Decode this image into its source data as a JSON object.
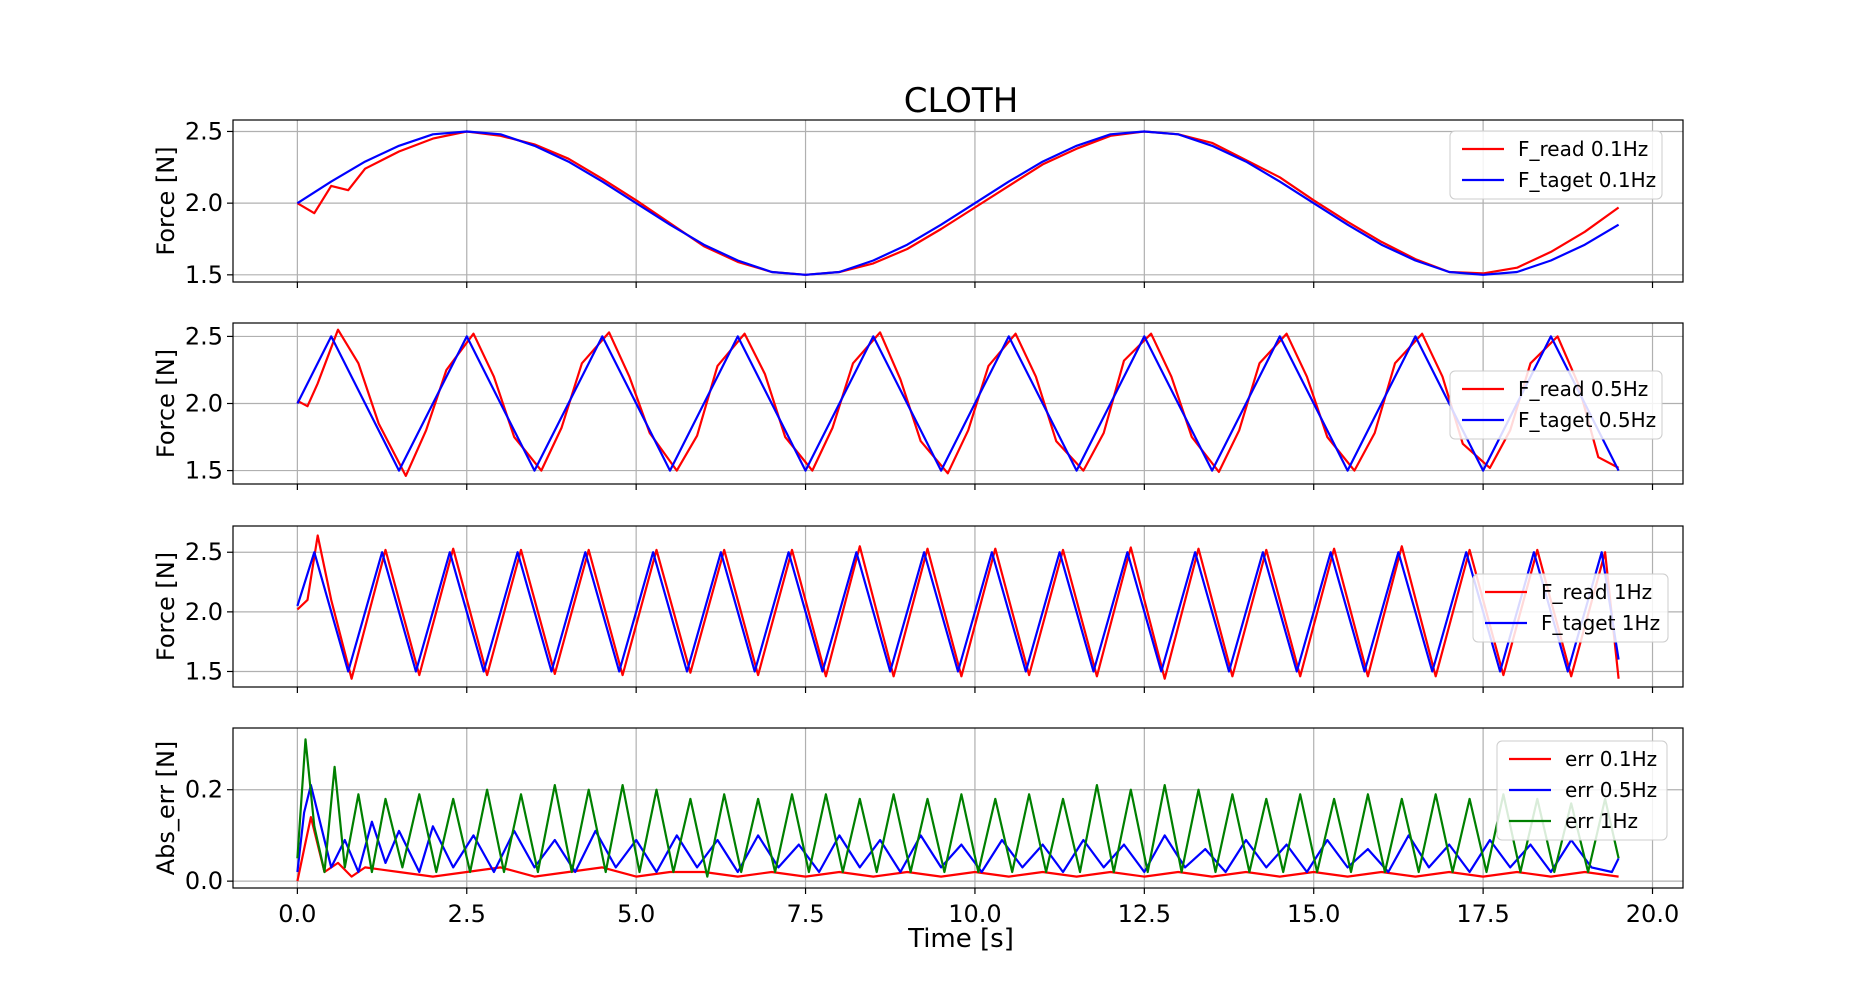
{
  "figure_title": "CLOTH",
  "xlabel": "Time [s]",
  "colors": {
    "read": "#ff0000",
    "target": "#0000ff",
    "err1": "#008000",
    "grid": "#b0b0b0"
  },
  "chart_data": [
    {
      "type": "line",
      "title": "CLOTH",
      "ylabel": "Force [N]",
      "xlim": [
        -0.95,
        20.45
      ],
      "ylim": [
        1.45,
        2.58
      ],
      "xticks": [
        "0.0",
        "2.5",
        "5.0",
        "7.5",
        "10.0",
        "12.5",
        "15.0",
        "17.5",
        "20.0"
      ],
      "yticks": [
        "1.5",
        "2.0",
        "2.5"
      ],
      "grid": true,
      "legend_position": "upper-right",
      "series": [
        {
          "name": "F_read 0.1Hz",
          "color": "#ff0000",
          "x": [
            0,
            0.25,
            0.5,
            0.75,
            1,
            1.5,
            2,
            2.5,
            3,
            3.5,
            4,
            4.5,
            5,
            5.5,
            6,
            6.5,
            7,
            7.5,
            8,
            8.5,
            9,
            9.5,
            10,
            10.5,
            11,
            11.5,
            12,
            12.5,
            13,
            13.5,
            14,
            14.5,
            15,
            15.5,
            16,
            16.5,
            17,
            17.5,
            18,
            18.5,
            19,
            19.5
          ],
          "y": [
            2.0,
            1.93,
            2.12,
            2.09,
            2.24,
            2.36,
            2.45,
            2.5,
            2.47,
            2.41,
            2.31,
            2.17,
            2.02,
            1.86,
            1.7,
            1.59,
            1.52,
            1.5,
            1.52,
            1.58,
            1.68,
            1.82,
            1.97,
            2.12,
            2.27,
            2.38,
            2.47,
            2.5,
            2.48,
            2.42,
            2.3,
            2.18,
            2.02,
            1.87,
            1.73,
            1.61,
            1.52,
            1.51,
            1.55,
            1.66,
            1.8,
            1.97
          ]
        },
        {
          "name": "F_taget 0.1Hz",
          "color": "#0000ff",
          "x": [
            0,
            0.5,
            1,
            1.5,
            2,
            2.5,
            3,
            3.5,
            4,
            4.5,
            5,
            5.5,
            6,
            6.5,
            7,
            7.5,
            8,
            8.5,
            9,
            9.5,
            10,
            10.5,
            11,
            11.5,
            12,
            12.5,
            13,
            13.5,
            14,
            14.5,
            15,
            15.5,
            16,
            16.5,
            17,
            17.5,
            18,
            18.5,
            19,
            19.5
          ],
          "y": [
            2.0,
            2.15,
            2.29,
            2.4,
            2.48,
            2.5,
            2.48,
            2.4,
            2.29,
            2.15,
            2.0,
            1.85,
            1.71,
            1.6,
            1.52,
            1.5,
            1.52,
            1.6,
            1.71,
            1.85,
            2.0,
            2.15,
            2.29,
            2.4,
            2.48,
            2.5,
            2.48,
            2.4,
            2.29,
            2.15,
            2.0,
            1.85,
            1.71,
            1.6,
            1.52,
            1.5,
            1.52,
            1.6,
            1.71,
            1.85
          ]
        }
      ]
    },
    {
      "type": "line",
      "ylabel": "Force [N]",
      "xlim": [
        -0.95,
        20.45
      ],
      "ylim": [
        1.4,
        2.6
      ],
      "xticks": [
        "0.0",
        "2.5",
        "5.0",
        "7.5",
        "10.0",
        "12.5",
        "15.0",
        "17.5",
        "20.0"
      ],
      "yticks": [
        "1.5",
        "2.0",
        "2.5"
      ],
      "grid": true,
      "legend_position": "center-right",
      "series": [
        {
          "name": "F_read 0.5Hz",
          "color": "#ff0000",
          "x": [
            0,
            0.15,
            0.3,
            0.6,
            0.9,
            1.2,
            1.6,
            1.9,
            2.2,
            2.6,
            2.9,
            3.2,
            3.6,
            3.9,
            4.2,
            4.6,
            4.9,
            5.2,
            5.6,
            5.9,
            6.2,
            6.6,
            6.9,
            7.2,
            7.6,
            7.9,
            8.2,
            8.6,
            8.9,
            9.2,
            9.6,
            9.9,
            10.2,
            10.6,
            10.9,
            11.2,
            11.6,
            11.9,
            12.2,
            12.6,
            12.9,
            13.2,
            13.6,
            13.9,
            14.2,
            14.6,
            14.9,
            15.2,
            15.6,
            15.9,
            16.2,
            16.6,
            16.9,
            17.2,
            17.6,
            17.9,
            18.2,
            18.6,
            18.9,
            19.2,
            19.5
          ],
          "y": [
            2.02,
            1.98,
            2.15,
            2.55,
            2.3,
            1.85,
            1.46,
            1.8,
            2.25,
            2.52,
            2.2,
            1.75,
            1.5,
            1.82,
            2.3,
            2.53,
            2.2,
            1.78,
            1.5,
            1.76,
            2.28,
            2.52,
            2.22,
            1.75,
            1.5,
            1.82,
            2.3,
            2.53,
            2.18,
            1.72,
            1.48,
            1.8,
            2.28,
            2.52,
            2.2,
            1.72,
            1.5,
            1.78,
            2.32,
            2.52,
            2.2,
            1.75,
            1.49,
            1.8,
            2.3,
            2.52,
            2.2,
            1.75,
            1.5,
            1.78,
            2.3,
            2.52,
            2.2,
            1.7,
            1.52,
            1.8,
            2.3,
            2.5,
            2.15,
            1.6,
            1.52
          ]
        },
        {
          "name": "F_taget 0.5Hz",
          "color": "#0000ff",
          "x": [
            0,
            0.5,
            1,
            1.5,
            2,
            2.5,
            3,
            3.5,
            4,
            4.5,
            5,
            5.5,
            6,
            6.5,
            7,
            7.5,
            8,
            8.5,
            9,
            9.5,
            10,
            10.5,
            11,
            11.5,
            12,
            12.5,
            13,
            13.5,
            14,
            14.5,
            15,
            15.5,
            16,
            16.5,
            17,
            17.5,
            18,
            18.5,
            19,
            19.5
          ],
          "y": [
            2.0,
            2.5,
            2.0,
            1.5,
            2.0,
            2.5,
            2.0,
            1.5,
            2.0,
            2.5,
            2.0,
            1.5,
            2.0,
            2.5,
            2.0,
            1.5,
            2.0,
            2.5,
            2.0,
            1.5,
            2.0,
            2.5,
            2.0,
            1.5,
            2.0,
            2.5,
            2.0,
            1.5,
            2.0,
            2.5,
            2.0,
            1.5,
            2.0,
            2.5,
            2.0,
            1.5,
            2.0,
            2.5,
            2.0,
            1.5
          ]
        }
      ]
    },
    {
      "type": "line",
      "ylabel": "Force [N]",
      "xlim": [
        -0.95,
        20.45
      ],
      "ylim": [
        1.37,
        2.72
      ],
      "xticks": [
        "0.0",
        "2.5",
        "5.0",
        "7.5",
        "10.0",
        "12.5",
        "15.0",
        "17.5",
        "20.0"
      ],
      "yticks": [
        "1.5",
        "2.0",
        "2.5"
      ],
      "grid": true,
      "legend_position": "center-right",
      "series": [
        {
          "name": "F_read 1Hz",
          "color": "#ff0000",
          "x": [
            0,
            0.15,
            0.3,
            0.5,
            0.8,
            1.3,
            1.8,
            2.3,
            2.8,
            3.3,
            3.8,
            4.3,
            4.8,
            5.3,
            5.8,
            6.3,
            6.8,
            7.3,
            7.8,
            8.3,
            8.8,
            9.3,
            9.8,
            10.3,
            10.8,
            11.3,
            11.8,
            12.3,
            12.8,
            13.3,
            13.8,
            14.3,
            14.8,
            15.3,
            15.8,
            16.3,
            16.8,
            17.3,
            17.8,
            18.3,
            18.8,
            19.3,
            19.5
          ],
          "y": [
            2.02,
            2.1,
            2.64,
            2.1,
            1.44,
            2.52,
            1.47,
            2.53,
            1.47,
            2.52,
            1.48,
            2.52,
            1.47,
            2.52,
            1.49,
            2.52,
            1.47,
            2.52,
            1.46,
            2.55,
            1.46,
            2.53,
            1.46,
            2.53,
            1.47,
            2.52,
            1.46,
            2.54,
            1.44,
            2.53,
            1.46,
            2.52,
            1.46,
            2.53,
            1.46,
            2.55,
            1.46,
            2.52,
            1.47,
            2.52,
            1.46,
            2.5,
            1.44
          ]
        },
        {
          "name": "F_taget 1Hz",
          "color": "#0000ff",
          "x": [
            0,
            0.25,
            0.75,
            1.25,
            1.75,
            2.25,
            2.75,
            3.25,
            3.75,
            4.25,
            4.75,
            5.25,
            5.75,
            6.25,
            6.75,
            7.25,
            7.75,
            8.25,
            8.75,
            9.25,
            9.75,
            10.25,
            10.75,
            11.25,
            11.75,
            12.25,
            12.75,
            13.25,
            13.75,
            14.25,
            14.75,
            15.25,
            15.75,
            16.25,
            16.75,
            17.25,
            17.75,
            18.25,
            18.75,
            19.25,
            19.5
          ],
          "y": [
            2.05,
            2.5,
            1.5,
            2.5,
            1.5,
            2.5,
            1.5,
            2.5,
            1.5,
            2.5,
            1.5,
            2.5,
            1.5,
            2.5,
            1.5,
            2.5,
            1.5,
            2.5,
            1.5,
            2.5,
            1.5,
            2.5,
            1.5,
            2.5,
            1.5,
            2.5,
            1.5,
            2.5,
            1.5,
            2.5,
            1.5,
            2.5,
            1.5,
            2.5,
            1.5,
            2.5,
            1.5,
            2.5,
            1.5,
            2.5,
            1.6
          ]
        }
      ]
    },
    {
      "type": "line",
      "ylabel": "Abs_err [N]",
      "xlabel": "Time [s]",
      "xlim": [
        -0.95,
        20.45
      ],
      "ylim": [
        -0.015,
        0.335
      ],
      "xticks": [
        "0.0",
        "2.5",
        "5.0",
        "7.5",
        "10.0",
        "12.5",
        "15.0",
        "17.5",
        "20.0"
      ],
      "yticks": [
        "0.0",
        "0.2"
      ],
      "grid": true,
      "legend_position": "upper-right",
      "series": [
        {
          "name": "err 0.1Hz",
          "color": "#ff0000",
          "x": [
            0,
            0.1,
            0.2,
            0.3,
            0.4,
            0.6,
            0.8,
            1.0,
            1.5,
            2.0,
            2.5,
            3.0,
            3.5,
            4.0,
            4.5,
            5.0,
            5.5,
            6.0,
            6.5,
            7.0,
            7.5,
            8.0,
            8.5,
            9.0,
            9.5,
            10.0,
            10.5,
            11.0,
            11.5,
            12.0,
            12.5,
            13.0,
            13.5,
            14.0,
            14.5,
            15.0,
            15.5,
            16.0,
            16.5,
            17.0,
            17.5,
            18.0,
            18.5,
            19.0,
            19.5
          ],
          "y": [
            0.0,
            0.07,
            0.14,
            0.08,
            0.02,
            0.04,
            0.01,
            0.03,
            0.02,
            0.01,
            0.02,
            0.03,
            0.01,
            0.02,
            0.03,
            0.01,
            0.02,
            0.02,
            0.01,
            0.02,
            0.01,
            0.02,
            0.01,
            0.02,
            0.01,
            0.02,
            0.01,
            0.02,
            0.01,
            0.02,
            0.01,
            0.02,
            0.01,
            0.02,
            0.01,
            0.02,
            0.01,
            0.02,
            0.01,
            0.02,
            0.01,
            0.02,
            0.01,
            0.02,
            0.01
          ]
        },
        {
          "name": "err 0.5Hz",
          "color": "#0000ff",
          "x": [
            0,
            0.1,
            0.2,
            0.35,
            0.5,
            0.7,
            0.9,
            1.1,
            1.3,
            1.5,
            1.8,
            2.0,
            2.3,
            2.6,
            2.9,
            3.2,
            3.5,
            3.8,
            4.1,
            4.4,
            4.7,
            5.0,
            5.3,
            5.6,
            5.9,
            6.2,
            6.5,
            6.8,
            7.1,
            7.4,
            7.7,
            8.0,
            8.3,
            8.6,
            8.9,
            9.2,
            9.5,
            9.8,
            10.1,
            10.4,
            10.7,
            11.0,
            11.3,
            11.6,
            11.9,
            12.2,
            12.5,
            12.8,
            13.1,
            13.4,
            13.7,
            14.0,
            14.3,
            14.6,
            14.9,
            15.2,
            15.5,
            15.8,
            16.1,
            16.4,
            16.7,
            17.0,
            17.3,
            17.6,
            17.9,
            18.2,
            18.5,
            18.8,
            19.1,
            19.4,
            19.5
          ],
          "y": [
            0.02,
            0.15,
            0.21,
            0.12,
            0.03,
            0.09,
            0.02,
            0.13,
            0.04,
            0.11,
            0.02,
            0.12,
            0.03,
            0.1,
            0.02,
            0.11,
            0.03,
            0.09,
            0.02,
            0.11,
            0.03,
            0.09,
            0.02,
            0.1,
            0.03,
            0.09,
            0.02,
            0.1,
            0.03,
            0.08,
            0.02,
            0.1,
            0.03,
            0.09,
            0.02,
            0.1,
            0.03,
            0.08,
            0.02,
            0.09,
            0.03,
            0.08,
            0.02,
            0.09,
            0.03,
            0.08,
            0.02,
            0.1,
            0.03,
            0.07,
            0.02,
            0.09,
            0.03,
            0.08,
            0.02,
            0.09,
            0.03,
            0.07,
            0.02,
            0.1,
            0.03,
            0.08,
            0.02,
            0.09,
            0.03,
            0.08,
            0.02,
            0.09,
            0.03,
            0.02,
            0.05
          ]
        },
        {
          "name": "err 1Hz",
          "color": "#008000",
          "x": [
            0,
            0.12,
            0.25,
            0.4,
            0.55,
            0.7,
            0.9,
            1.1,
            1.3,
            1.55,
            1.8,
            2.05,
            2.3,
            2.55,
            2.8,
            3.05,
            3.3,
            3.55,
            3.8,
            4.05,
            4.3,
            4.55,
            4.8,
            5.05,
            5.3,
            5.55,
            5.8,
            6.05,
            6.3,
            6.55,
            6.8,
            7.05,
            7.3,
            7.55,
            7.8,
            8.05,
            8.3,
            8.55,
            8.8,
            9.05,
            9.3,
            9.55,
            9.8,
            10.05,
            10.3,
            10.55,
            10.8,
            11.05,
            11.3,
            11.55,
            11.8,
            12.05,
            12.3,
            12.55,
            12.8,
            13.05,
            13.3,
            13.55,
            13.8,
            14.05,
            14.3,
            14.55,
            14.8,
            15.05,
            15.3,
            15.55,
            15.8,
            16.05,
            16.3,
            16.55,
            16.8,
            17.05,
            17.3,
            17.55,
            17.8,
            18.05,
            18.3,
            18.55,
            18.8,
            19.05,
            19.3,
            19.5
          ],
          "y": [
            0.05,
            0.31,
            0.12,
            0.02,
            0.25,
            0.03,
            0.19,
            0.02,
            0.18,
            0.03,
            0.19,
            0.02,
            0.18,
            0.02,
            0.2,
            0.02,
            0.19,
            0.02,
            0.21,
            0.02,
            0.2,
            0.02,
            0.21,
            0.02,
            0.2,
            0.02,
            0.18,
            0.01,
            0.19,
            0.02,
            0.18,
            0.02,
            0.19,
            0.02,
            0.19,
            0.02,
            0.18,
            0.02,
            0.19,
            0.02,
            0.18,
            0.02,
            0.19,
            0.02,
            0.18,
            0.02,
            0.19,
            0.02,
            0.18,
            0.02,
            0.21,
            0.02,
            0.2,
            0.02,
            0.21,
            0.02,
            0.2,
            0.02,
            0.19,
            0.02,
            0.18,
            0.02,
            0.19,
            0.02,
            0.18,
            0.02,
            0.19,
            0.02,
            0.18,
            0.02,
            0.19,
            0.02,
            0.18,
            0.02,
            0.19,
            0.02,
            0.18,
            0.02,
            0.17,
            0.02,
            0.18,
            0.05
          ]
        }
      ]
    }
  ]
}
